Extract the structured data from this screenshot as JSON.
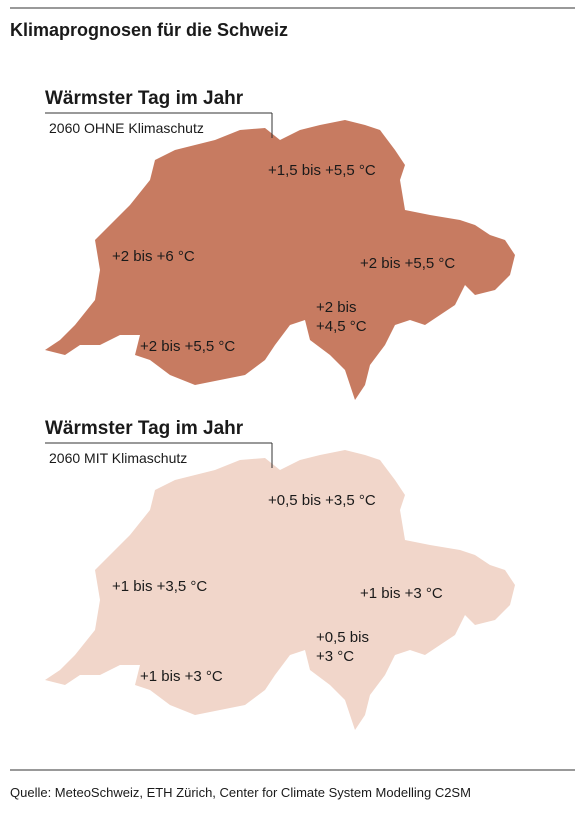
{
  "title": "Klimaprognosen für die Schweiz",
  "maps": [
    {
      "heading": "Wärmster Tag im Jahr",
      "scenario": "2060 OHNE Klimaschutz",
      "color": "#c77b61",
      "regions": [
        {
          "lines": [
            "+1,5 bis +5,5 °C"
          ]
        },
        {
          "lines": [
            "+2 bis +6 °C"
          ]
        },
        {
          "lines": [
            "+2 bis +5,5 °C"
          ]
        },
        {
          "lines": [
            "+2 bis",
            "+4,5 °C"
          ]
        },
        {
          "lines": [
            "+2 bis +5,5 °C"
          ]
        }
      ]
    },
    {
      "heading": "Wärmster Tag im Jahr",
      "scenario": "2060 MIT Klimaschutz",
      "color": "#f1d6ca",
      "regions": [
        {
          "lines": [
            "+0,5 bis +3,5 °C"
          ]
        },
        {
          "lines": [
            "+1 bis +3,5 °C"
          ]
        },
        {
          "lines": [
            "+1 bis +3 °C"
          ]
        },
        {
          "lines": [
            "+0,5 bis",
            "+3 °C"
          ]
        },
        {
          "lines": [
            "+1 bis +3 °C"
          ]
        }
      ]
    }
  ],
  "source": "Quelle: MeteoSchweiz, ETH Zürich, Center for Climate System Modelling C2SM"
}
